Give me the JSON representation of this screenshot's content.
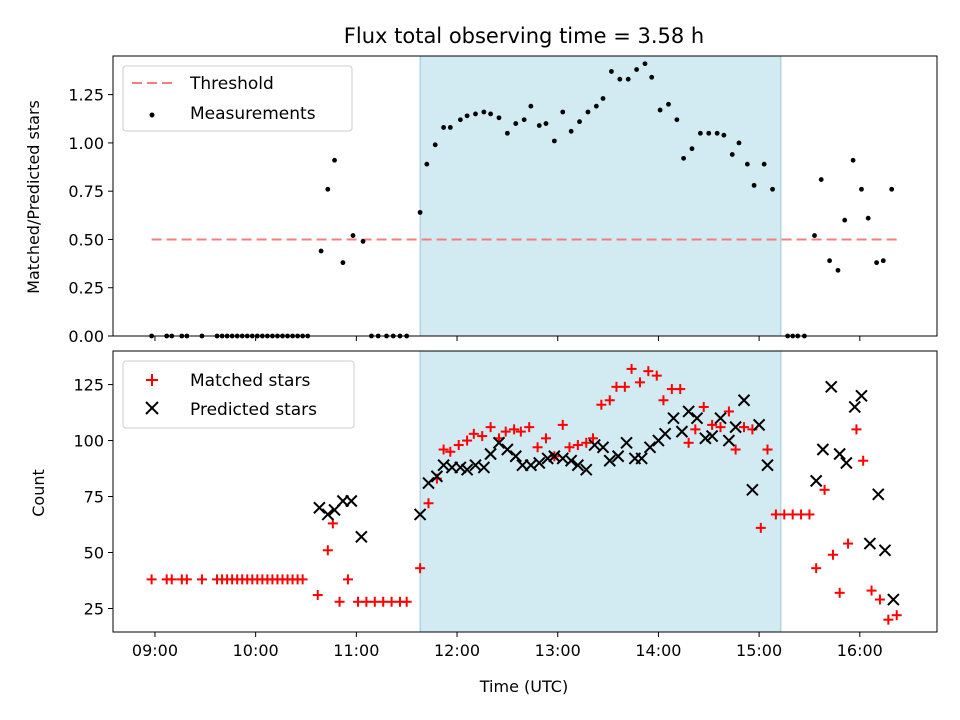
{
  "chart_data": [
    {
      "type": "scatter",
      "title": "Flux total observing time = 3.58 h",
      "ylabel": "Matched/Predicted stars",
      "xlim": [
        "08:35",
        "16:46"
      ],
      "ylim": [
        0,
        1.45
      ],
      "xticks": [
        "09:00",
        "10:00",
        "11:00",
        "12:00",
        "13:00",
        "14:00",
        "15:00",
        "16:00"
      ],
      "yticks": [
        "0.00",
        "0.25",
        "0.50",
        "0.75",
        "1.00",
        "1.25"
      ],
      "shaded_interval": [
        "11:38",
        "15:13"
      ],
      "legend": "top-left",
      "threshold": {
        "name": "Threshold",
        "value": 0.5,
        "x": [
          "08:58",
          "16:24"
        ],
        "color": "#f08080"
      },
      "series": [
        {
          "name": "Measurements",
          "color": "#000000",
          "points": [
            [
              "08:58",
              0
            ],
            [
              "09:07",
              0
            ],
            [
              "09:10",
              0
            ],
            [
              "09:16",
              0
            ],
            [
              "09:19",
              0
            ],
            [
              "09:28",
              0
            ],
            [
              "09:37",
              0
            ],
            [
              "09:40",
              0
            ],
            [
              "09:43",
              0
            ],
            [
              "09:46",
              0
            ],
            [
              "09:49",
              0
            ],
            [
              "09:52",
              0
            ],
            [
              "09:55",
              0
            ],
            [
              "09:58",
              0
            ],
            [
              "10:01",
              0
            ],
            [
              "10:04",
              0
            ],
            [
              "10:07",
              0
            ],
            [
              "10:10",
              0
            ],
            [
              "10:13",
              0
            ],
            [
              "10:16",
              0
            ],
            [
              "10:19",
              0
            ],
            [
              "10:22",
              0
            ],
            [
              "10:25",
              0
            ],
            [
              "10:28",
              0
            ],
            [
              "10:31",
              0
            ],
            [
              "10:39",
              0.44
            ],
            [
              "10:43",
              0.76
            ],
            [
              "10:47",
              0.91
            ],
            [
              "10:52",
              0.38
            ],
            [
              "10:58",
              0.52
            ],
            [
              "11:04",
              0.49
            ],
            [
              "11:09",
              0
            ],
            [
              "11:13",
              0
            ],
            [
              "11:18",
              0
            ],
            [
              "11:22",
              0
            ],
            [
              "11:26",
              0
            ],
            [
              "11:30",
              0
            ],
            [
              "11:38",
              0.64
            ],
            [
              "11:42",
              0.89
            ],
            [
              "11:47",
              0.99
            ],
            [
              "11:52",
              1.08
            ],
            [
              "11:56",
              1.08
            ],
            [
              "12:02",
              1.12
            ],
            [
              "12:06",
              1.14
            ],
            [
              "12:11",
              1.15
            ],
            [
              "12:16",
              1.16
            ],
            [
              "12:20",
              1.15
            ],
            [
              "12:25",
              1.13
            ],
            [
              "12:30",
              1.05
            ],
            [
              "12:35",
              1.1
            ],
            [
              "12:40",
              1.12
            ],
            [
              "12:44",
              1.19
            ],
            [
              "12:49",
              1.09
            ],
            [
              "12:53",
              1.1
            ],
            [
              "12:58",
              1.01
            ],
            [
              "13:03",
              1.16
            ],
            [
              "13:08",
              1.06
            ],
            [
              "13:13",
              1.11
            ],
            [
              "13:18",
              1.16
            ],
            [
              "13:23",
              1.19
            ],
            [
              "13:27",
              1.23
            ],
            [
              "13:32",
              1.37
            ],
            [
              "13:37",
              1.33
            ],
            [
              "13:42",
              1.33
            ],
            [
              "13:47",
              1.38
            ],
            [
              "13:52",
              1.41
            ],
            [
              "13:56",
              1.34
            ],
            [
              "14:01",
              1.17
            ],
            [
              "14:06",
              1.2
            ],
            [
              "14:11",
              1.12
            ],
            [
              "14:15",
              0.92
            ],
            [
              "14:20",
              0.97
            ],
            [
              "14:25",
              1.05
            ],
            [
              "14:30",
              1.05
            ],
            [
              "14:35",
              1.05
            ],
            [
              "14:39",
              1.04
            ],
            [
              "14:44",
              0.94
            ],
            [
              "14:48",
              1.0
            ],
            [
              "14:53",
              0.89
            ],
            [
              "14:57",
              0.78
            ],
            [
              "15:03",
              0.89
            ],
            [
              "15:08",
              0.76
            ],
            [
              "15:17",
              0
            ],
            [
              "15:20",
              0
            ],
            [
              "15:23",
              0
            ],
            [
              "15:27",
              0
            ],
            [
              "15:33",
              0.52
            ],
            [
              "15:37",
              0.81
            ],
            [
              "15:42",
              0.39
            ],
            [
              "15:47",
              0.34
            ],
            [
              "15:51",
              0.6
            ],
            [
              "15:56",
              0.91
            ],
            [
              "16:01",
              0.76
            ],
            [
              "16:05",
              0.61
            ],
            [
              "16:10",
              0.38
            ],
            [
              "16:14",
              0.39
            ],
            [
              "16:19",
              0.76
            ]
          ]
        }
      ]
    },
    {
      "type": "scatter",
      "xlabel": "Time (UTC)",
      "ylabel": "Count",
      "xlim": [
        "08:35",
        "16:46"
      ],
      "ylim": [
        14.5,
        140
      ],
      "xticks": [
        "09:00",
        "10:00",
        "11:00",
        "12:00",
        "13:00",
        "14:00",
        "15:00",
        "16:00"
      ],
      "yticks": [
        "25",
        "50",
        "75",
        "100",
        "125"
      ],
      "shaded_interval": [
        "11:38",
        "15:13"
      ],
      "legend": "top-left",
      "series": [
        {
          "name": "Matched stars",
          "color": "#ff0000",
          "marker": "plus",
          "points": [
            [
              "08:58",
              38
            ],
            [
              "09:07",
              38
            ],
            [
              "09:10",
              38
            ],
            [
              "09:16",
              38
            ],
            [
              "09:19",
              38
            ],
            [
              "09:28",
              38
            ],
            [
              "09:37",
              38
            ],
            [
              "09:40",
              38
            ],
            [
              "09:43",
              38
            ],
            [
              "09:46",
              38
            ],
            [
              "09:49",
              38
            ],
            [
              "09:52",
              38
            ],
            [
              "09:55",
              38
            ],
            [
              "09:58",
              38
            ],
            [
              "10:01",
              38
            ],
            [
              "10:04",
              38
            ],
            [
              "10:07",
              38
            ],
            [
              "10:10",
              38
            ],
            [
              "10:13",
              38
            ],
            [
              "10:16",
              38
            ],
            [
              "10:19",
              38
            ],
            [
              "10:22",
              38
            ],
            [
              "10:25",
              38
            ],
            [
              "10:28",
              38
            ],
            [
              "10:37",
              31
            ],
            [
              "10:43",
              51
            ],
            [
              "10:46",
              63
            ],
            [
              "10:50",
              28
            ],
            [
              "10:55",
              38
            ],
            [
              "11:01",
              28
            ],
            [
              "11:06",
              28
            ],
            [
              "11:11",
              28
            ],
            [
              "11:16",
              28
            ],
            [
              "11:21",
              28
            ],
            [
              "11:26",
              28
            ],
            [
              "11:30",
              28
            ],
            [
              "11:38",
              43
            ],
            [
              "11:43",
              72
            ],
            [
              "11:48",
              83
            ],
            [
              "11:52",
              96
            ],
            [
              "11:56",
              95
            ],
            [
              "12:01",
              98
            ],
            [
              "12:06",
              100
            ],
            [
              "12:10",
              103
            ],
            [
              "12:15",
              102
            ],
            [
              "12:20",
              106
            ],
            [
              "12:25",
              101
            ],
            [
              "12:29",
              104
            ],
            [
              "12:34",
              105
            ],
            [
              "12:38",
              104
            ],
            [
              "12:43",
              106
            ],
            [
              "12:48",
              97
            ],
            [
              "12:53",
              101
            ],
            [
              "12:58",
              93
            ],
            [
              "13:03",
              107
            ],
            [
              "13:07",
              97
            ],
            [
              "13:12",
              98
            ],
            [
              "13:17",
              99
            ],
            [
              "13:21",
              101
            ],
            [
              "13:26",
              116
            ],
            [
              "13:31",
              118
            ],
            [
              "13:35",
              124
            ],
            [
              "13:40",
              124
            ],
            [
              "13:44",
              132
            ],
            [
              "13:49",
              126
            ],
            [
              "13:54",
              131
            ],
            [
              "13:59",
              129
            ],
            [
              "14:03",
              118
            ],
            [
              "14:08",
              123
            ],
            [
              "14:13",
              123
            ],
            [
              "14:18",
              99
            ],
            [
              "14:22",
              105
            ],
            [
              "14:27",
              115
            ],
            [
              "14:32",
              107
            ],
            [
              "14:37",
              106
            ],
            [
              "14:42",
              113
            ],
            [
              "14:46",
              96
            ],
            [
              "14:51",
              106
            ],
            [
              "14:56",
              105
            ],
            [
              "15:01",
              61
            ],
            [
              "15:05",
              96
            ],
            [
              "15:10",
              67
            ],
            [
              "15:15",
              67
            ],
            [
              "15:20",
              67
            ],
            [
              "15:25",
              67
            ],
            [
              "15:30",
              67
            ],
            [
              "15:34",
              43
            ],
            [
              "15:39",
              78
            ],
            [
              "15:44",
              49
            ],
            [
              "15:48",
              32
            ],
            [
              "15:53",
              54
            ],
            [
              "15:58",
              105
            ],
            [
              "16:02",
              91
            ],
            [
              "16:07",
              33
            ],
            [
              "16:12",
              29
            ],
            [
              "16:17",
              20
            ],
            [
              "16:22",
              22
            ]
          ]
        },
        {
          "name": "Predicted stars",
          "color": "#000000",
          "marker": "x",
          "points": [
            [
              "10:38",
              70
            ],
            [
              "10:43",
              67
            ],
            [
              "10:47",
              69
            ],
            [
              "10:52",
              73
            ],
            [
              "10:57",
              73
            ],
            [
              "11:03",
              57
            ],
            [
              "11:38",
              67
            ],
            [
              "11:43",
              81
            ],
            [
              "11:48",
              84
            ],
            [
              "11:52",
              89
            ],
            [
              "11:57",
              88
            ],
            [
              "12:02",
              88
            ],
            [
              "12:06",
              87
            ],
            [
              "12:11",
              89
            ],
            [
              "12:16",
              88
            ],
            [
              "12:20",
              94
            ],
            [
              "12:25",
              99
            ],
            [
              "12:30",
              96
            ],
            [
              "12:35",
              93
            ],
            [
              "12:39",
              89
            ],
            [
              "12:44",
              89
            ],
            [
              "12:49",
              90
            ],
            [
              "12:54",
              92
            ],
            [
              "12:58",
              93
            ],
            [
              "13:03",
              92
            ],
            [
              "13:08",
              91
            ],
            [
              "13:12",
              89
            ],
            [
              "13:17",
              87
            ],
            [
              "13:22",
              98
            ],
            [
              "13:27",
              97
            ],
            [
              "13:31",
              91
            ],
            [
              "13:36",
              93
            ],
            [
              "13:41",
              99
            ],
            [
              "13:46",
              92
            ],
            [
              "13:50",
              92
            ],
            [
              "13:55",
              97
            ],
            [
              "14:00",
              100
            ],
            [
              "14:04",
              103
            ],
            [
              "14:09",
              110
            ],
            [
              "14:14",
              104
            ],
            [
              "14:18",
              113
            ],
            [
              "14:23",
              110
            ],
            [
              "14:28",
              101
            ],
            [
              "14:32",
              102
            ],
            [
              "14:37",
              110
            ],
            [
              "14:42",
              100
            ],
            [
              "14:46",
              106
            ],
            [
              "14:51",
              118
            ],
            [
              "14:56",
              78
            ],
            [
              "15:00",
              107
            ],
            [
              "15:05",
              89
            ],
            [
              "15:34",
              82
            ],
            [
              "15:38",
              96
            ],
            [
              "15:43",
              124
            ],
            [
              "15:48",
              94
            ],
            [
              "15:52",
              90
            ],
            [
              "15:57",
              115
            ],
            [
              "16:01",
              120
            ],
            [
              "16:06",
              54
            ],
            [
              "16:11",
              76
            ],
            [
              "16:15",
              51
            ],
            [
              "16:20",
              29
            ]
          ]
        }
      ]
    }
  ]
}
